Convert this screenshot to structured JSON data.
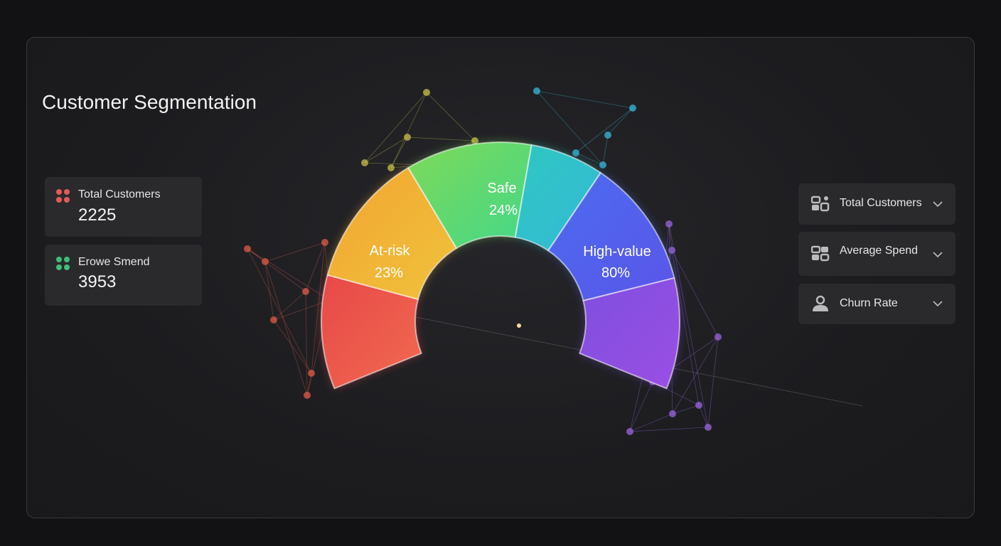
{
  "header": {
    "title": "Customer Segmentation"
  },
  "stats": [
    {
      "label": "Total Customers",
      "value": 2225
    },
    {
      "label": "Erowe Smend",
      "value": 3953
    }
  ],
  "segments": [
    {
      "label": "At-risk",
      "percent": "23%"
    },
    {
      "label": "Safe",
      "percent": "24%"
    },
    {
      "label": "High-value",
      "percent": "80%"
    }
  ],
  "filters": [
    "Total Customers",
    "Average Spend",
    "Churn Rate"
  ]
}
